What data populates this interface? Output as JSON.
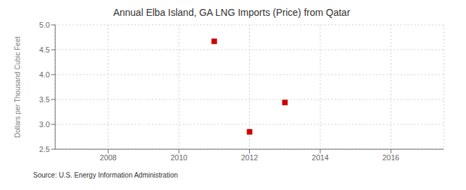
{
  "chart_data": {
    "type": "scatter",
    "title": "Annual Elba Island, GA LNG Imports (Price) from Qatar",
    "y_label": "Dollars per Thousand Cubic Feet",
    "annotation": "Source: U.S. Energy Information Administration",
    "x": [
      2011,
      2012,
      2013
    ],
    "values": [
      4.67,
      2.85,
      3.44
    ],
    "xlim": [
      2006.5,
      2017.5
    ],
    "ylim": [
      2.5,
      5.0
    ],
    "xticks": [
      2008,
      2010,
      2012,
      2014,
      2016
    ],
    "yticks": [
      2.5,
      {
        "value": 3,
        "label": "3.0"
      },
      3.5,
      {
        "value": 4,
        "label": "4.0"
      },
      4.5,
      {
        "value": 5,
        "label": "5.0"
      }
    ],
    "grid": true,
    "color": "#cc0000",
    "marker": "square"
  }
}
